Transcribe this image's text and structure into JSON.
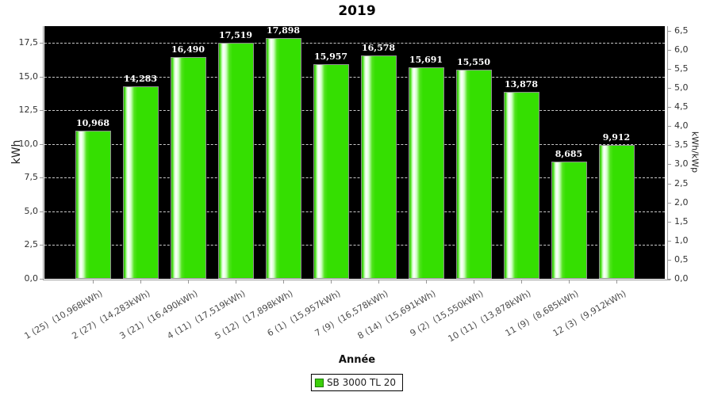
{
  "title": "2019",
  "chart_data": {
    "type": "bar",
    "title": "2019",
    "xlabel": "Année",
    "ylabel_left": "kWh",
    "ylabel_right": "kWh/kWp",
    "legend": {
      "label": "SB 3000 TL 20",
      "position": "bottom-center"
    },
    "plot_background": "black",
    "grid": "horizontal dashed white lines at left-axis ticks",
    "categories": [
      "1 (25)  (10,968kWh)",
      "2 (27)  (14,283kWh)",
      "3 (21)  (16,490kWh)",
      "4 (11)  (17,519kWh)",
      "5 (12)  (17,898kWh)",
      "6 (1)  (15,957kWh)",
      "7 (9)  (16,578kWh)",
      "8 (14)  (15,691kWh)",
      "9 (2)  (15,550kWh)",
      "10 (11)  (13,878kWh)",
      "11 (9)  (8,685kWh)",
      "12 (3)  (9,912kWh)"
    ],
    "values": [
      10.968,
      14.283,
      16.49,
      17.519,
      17.898,
      15.957,
      16.578,
      15.691,
      15.55,
      13.878,
      8.685,
      9.912
    ],
    "value_labels": [
      "10,968",
      "14,283",
      "16,490",
      "17,519",
      "17,898",
      "15,957",
      "16,578",
      "15,691",
      "15,550",
      "13,878",
      "8,685",
      "9,912"
    ],
    "left_axis_ticks": [
      "0,0",
      "2,5",
      "5,0",
      "7,5",
      "10,0",
      "12,5",
      "15,0",
      "17,5"
    ],
    "right_axis_ticks": [
      "0,0",
      "0,5",
      "1,0",
      "1,5",
      "2,0",
      "2,5",
      "3,0",
      "3,5",
      "4,0",
      "4,5",
      "5,0",
      "5,5",
      "6,0",
      "6,5"
    ],
    "ylim_left": [
      0,
      18.76
    ],
    "ylim_right": [
      0,
      6.62
    ]
  },
  "colors": {
    "bar_green": "#35df01",
    "bar_highlight": "#ffffff",
    "bar_border": "#8f8f8f",
    "plot_background": "#000000",
    "gridline": "#c8c8c8",
    "axis_line": "#999999",
    "value_label_text": "#ffffff",
    "tick_label_text": "#333333",
    "category_label_text": "#4d4d4d",
    "legend_swatch": "#3ccf0b",
    "legend_swatch_border": "#1c7a00"
  }
}
